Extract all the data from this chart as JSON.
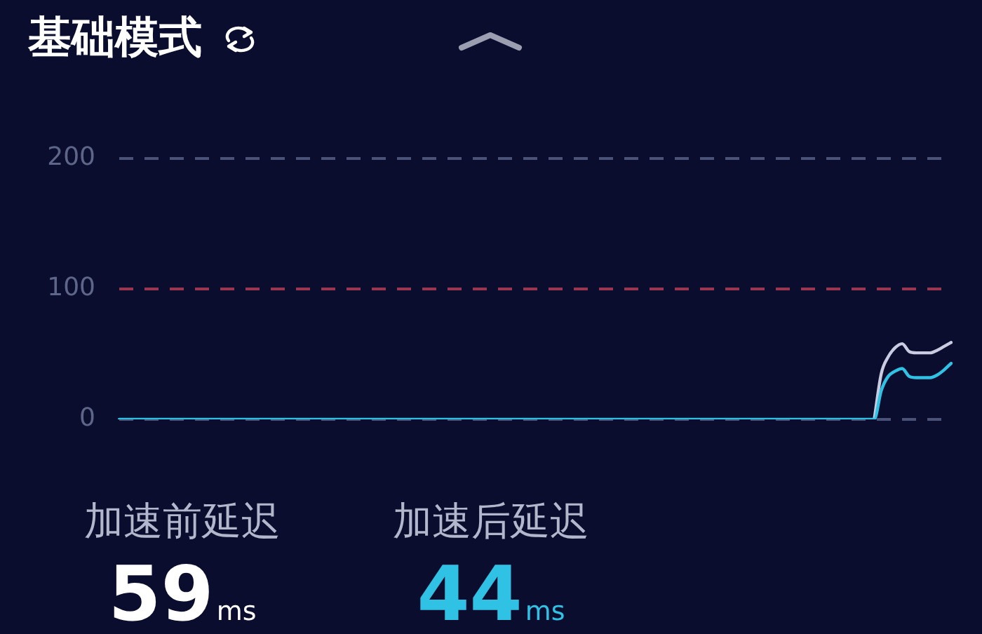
{
  "chart_data": {
    "type": "line",
    "title": "基础模式",
    "categories": [
      null,
      null,
      null,
      null,
      null,
      null,
      null,
      null,
      null,
      null,
      null,
      null,
      null,
      null,
      null,
      null,
      null,
      null,
      null,
      null,
      null,
      null,
      null,
      null,
      null,
      null,
      null,
      null,
      null,
      null,
      null,
      null,
      null,
      null,
      null,
      null,
      null,
      null,
      null,
      null,
      null,
      null,
      null,
      null,
      null,
      null,
      null,
      null,
      null,
      null,
      null,
      null,
      null,
      null,
      null,
      null,
      null,
      null,
      null,
      null,
      null,
      null,
      null,
      null,
      null,
      null,
      null,
      null,
      null,
      null,
      null,
      null,
      null,
      null,
      null,
      null,
      null,
      null,
      null,
      null,
      null,
      null,
      null,
      null,
      null,
      null,
      null,
      null,
      null,
      null,
      null,
      null,
      null,
      null,
      null,
      null,
      null,
      null,
      null,
      null,
      null,
      null,
      null,
      null,
      null,
      null,
      null,
      null,
      null,
      null,
      null,
      null,
      null,
      null,
      null,
      null,
      null,
      null,
      null,
      null
    ],
    "series": [
      {
        "color": "#c9cbe0",
        "values": [
          null,
          null,
          null,
          null,
          null,
          null,
          null,
          null,
          null,
          null,
          null,
          null,
          null,
          null,
          null,
          null,
          null,
          null,
          null,
          null,
          null,
          null,
          null,
          null,
          null,
          null,
          null,
          null,
          null,
          null,
          null,
          null,
          null,
          null,
          null,
          null,
          null,
          null,
          null,
          null,
          null,
          null,
          null,
          null,
          null,
          null,
          null,
          null,
          null,
          null,
          null,
          null,
          null,
          null,
          null,
          null,
          null,
          null,
          null,
          null,
          null,
          null,
          null,
          null,
          null,
          null,
          null,
          null,
          null,
          null,
          null,
          null,
          null,
          null,
          null,
          null,
          null,
          null,
          null,
          null,
          null,
          null,
          null,
          null,
          null,
          null,
          null,
          null,
          null,
          null,
          null,
          null,
          null,
          null,
          null,
          null,
          null,
          null,
          null,
          null,
          null,
          null,
          null,
          null,
          null,
          null,
          null,
          null,
          0,
          35,
          48,
          55,
          58,
          52,
          51,
          51,
          51,
          53,
          56,
          59
        ]
      },
      {
        "color": "#2fc2e4",
        "values": [
          0,
          0,
          0,
          0,
          0,
          0,
          0,
          0,
          0,
          0,
          0,
          0,
          0,
          0,
          0,
          0,
          0,
          0,
          0,
          0,
          0,
          0,
          0,
          0,
          0,
          0,
          0,
          0,
          0,
          0,
          0,
          0,
          0,
          0,
          0,
          0,
          0,
          0,
          0,
          0,
          0,
          0,
          0,
          0,
          0,
          0,
          0,
          0,
          0,
          0,
          0,
          0,
          0,
          0,
          0,
          0,
          0,
          0,
          0,
          0,
          0,
          0,
          0,
          0,
          0,
          0,
          0,
          0,
          0,
          0,
          0,
          0,
          0,
          0,
          0,
          0,
          0,
          0,
          0,
          0,
          0,
          0,
          0,
          0,
          0,
          0,
          0,
          0,
          0,
          0,
          0,
          0,
          0,
          0,
          0,
          0,
          0,
          0,
          0,
          0,
          0,
          0,
          0,
          0,
          0,
          0,
          0,
          0,
          0,
          22,
          33,
          37,
          39,
          33,
          32,
          32,
          32,
          34,
          38,
          43
        ]
      }
    ],
    "ylim": [
      0,
      200
    ],
    "yticks": [
      0,
      100,
      200
    ],
    "marker": "none",
    "line_style": "solid",
    "ref_lines": [
      {
        "axis": "y",
        "value": 200,
        "color": "#4b5278",
        "line_style": "dashed"
      },
      {
        "axis": "y",
        "value": 100,
        "color": "#9b3650",
        "line_style": "dashed"
      },
      {
        "axis": "y",
        "value": 0,
        "color": "#4b5278",
        "line_style": "dashed"
      }
    ],
    "annotations": [
      "加速前延迟",
      "59",
      "ms",
      "加速后延迟",
      "44",
      "ms"
    ]
  }
}
